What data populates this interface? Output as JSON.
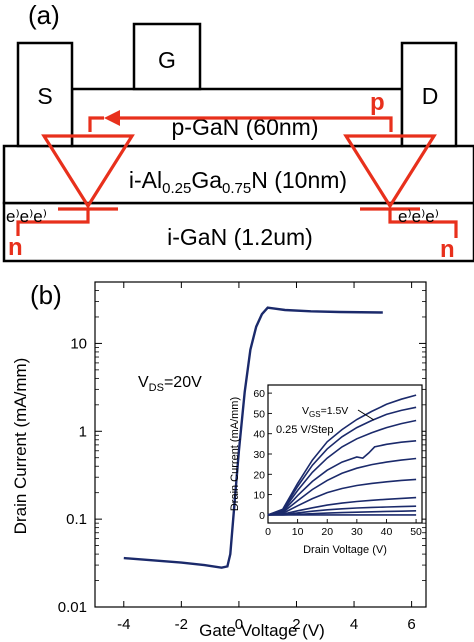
{
  "panel_a": {
    "label": "(a)",
    "source": "S",
    "gate": "G",
    "drain": "D",
    "pgan": "p-GaN (60nm)",
    "algan_pre": "i-Al",
    "algan_sub1": "0.25",
    "algan_mid": "Ga",
    "algan_sub2": "0.75",
    "algan_post": "N (10nm)",
    "igan": "i-GaN (1.2um)",
    "p_mark": "p",
    "n_left": "n",
    "n_right": "n",
    "e_left": "e⁾e⁾e⁾",
    "e_right": "e⁾e⁾e⁾",
    "colors": {
      "red": "#e8301c",
      "curve": "#1b2a6b"
    }
  },
  "panel_b": {
    "label": "(b)"
  },
  "chart_data": [
    {
      "type": "line",
      "title": "",
      "xlabel": "Gate Voltage (V)",
      "ylabel": "Drain Current (mA/mm)",
      "xlim": [
        -5,
        6.5
      ],
      "ylim": [
        0.01,
        50
      ],
      "yscale": "log",
      "xticks": [
        -4,
        -2,
        0,
        2,
        4,
        6
      ],
      "yticks": [
        {
          "value": 0.01,
          "label": "0.01"
        },
        {
          "value": 0.1,
          "label": "0.1"
        },
        {
          "value": 1,
          "label": "1"
        },
        {
          "value": 10,
          "label": "10"
        }
      ],
      "annotation": {
        "pre": "V",
        "sub": "DS",
        "post": "=20V"
      },
      "series": [
        {
          "x": [
            -4,
            -3,
            -2,
            -1.2,
            -0.6,
            -0.4,
            -0.3,
            -0.2,
            0,
            0.2,
            0.4,
            0.6,
            0.8,
            1.0,
            1.2,
            1.6,
            2.5,
            3.5,
            5.0
          ],
          "y": [
            0.036,
            0.034,
            0.032,
            0.03,
            0.028,
            0.029,
            0.04,
            0.1,
            0.6,
            2.8,
            8.5,
            15.5,
            21.5,
            25.5,
            25.0,
            24.0,
            23.2,
            22.8,
            22.5
          ]
        }
      ]
    },
    {
      "type": "line",
      "title": "",
      "xlabel": "Drain Voltage (V)",
      "ylabel": "Drain Current (mA/mm)",
      "xlim": [
        0,
        52
      ],
      "ylim": [
        -4,
        64
      ],
      "xticks": [
        0,
        10,
        20,
        30,
        40,
        50
      ],
      "yticks": [
        0,
        10,
        20,
        30,
        40,
        50,
        60
      ],
      "annotation_vgs": {
        "pre": "V",
        "sub": "GS",
        "post": "=1.5V"
      },
      "annotation_step": "0.25 V/Step",
      "series": [
        {
          "x": [
            0,
            5,
            10,
            15,
            20,
            25,
            30,
            35,
            40,
            45,
            50
          ],
          "y": [
            0,
            0,
            0,
            0,
            0,
            0,
            0,
            0,
            0,
            0,
            0
          ]
        },
        {
          "x": [
            0,
            5,
            10,
            15,
            20,
            25,
            30,
            35,
            40,
            45,
            50
          ],
          "y": [
            0,
            0,
            0.3,
            0.6,
            0.9,
            1.1,
            1.3,
            1.5,
            1.7,
            1.8,
            2
          ]
        },
        {
          "x": [
            0,
            5,
            10,
            15,
            20,
            25,
            30,
            35,
            40,
            45,
            50
          ],
          "y": [
            0,
            0.2,
            1,
            1.8,
            2.5,
            3,
            3.4,
            3.7,
            3.9,
            4.1,
            4.3
          ]
        },
        {
          "x": [
            0,
            5,
            10,
            15,
            20,
            25,
            30,
            35,
            40,
            45,
            50
          ],
          "y": [
            0,
            0.4,
            2,
            3.5,
            4.8,
            5.8,
            6.6,
            7.2,
            7.7,
            8.1,
            8.5
          ]
        },
        {
          "x": [
            0,
            5,
            10,
            15,
            20,
            25,
            30,
            35,
            40,
            45,
            50
          ],
          "y": [
            0,
            0.8,
            4.5,
            8,
            11,
            13,
            14.5,
            15.5,
            16.3,
            17,
            17.5
          ]
        },
        {
          "x": [
            0,
            5,
            10,
            15,
            20,
            25,
            30,
            35,
            40,
            45,
            50
          ],
          "y": [
            0,
            1.2,
            7,
            12.5,
            17,
            20.5,
            23,
            24.8,
            26,
            27,
            27.8
          ]
        },
        {
          "x": [
            0,
            5,
            10,
            15,
            20,
            25,
            30,
            32,
            34,
            36,
            40,
            45,
            50
          ],
          "y": [
            0,
            1.6,
            9.5,
            16.5,
            22,
            26,
            28.5,
            28,
            30.5,
            33.5,
            34.8,
            35.8,
            36.5
          ]
        },
        {
          "x": [
            0,
            5,
            10,
            15,
            20,
            25,
            30,
            35,
            40,
            45,
            50
          ],
          "y": [
            0,
            2,
            12,
            21,
            28,
            33.5,
            37.5,
            40.5,
            43,
            45,
            46.5
          ]
        },
        {
          "x": [
            0,
            5,
            10,
            15,
            20,
            25,
            30,
            35,
            40,
            45,
            50
          ],
          "y": [
            0,
            2.4,
            14,
            24.5,
            32.5,
            38.5,
            43,
            46.5,
            49.5,
            51.5,
            53
          ]
        },
        {
          "x": [
            0,
            5,
            10,
            15,
            20,
            25,
            30,
            35,
            40,
            45,
            50
          ],
          "y": [
            0,
            2.8,
            15.5,
            27,
            36,
            42,
            47,
            51,
            54.5,
            57,
            59
          ]
        }
      ]
    }
  ]
}
